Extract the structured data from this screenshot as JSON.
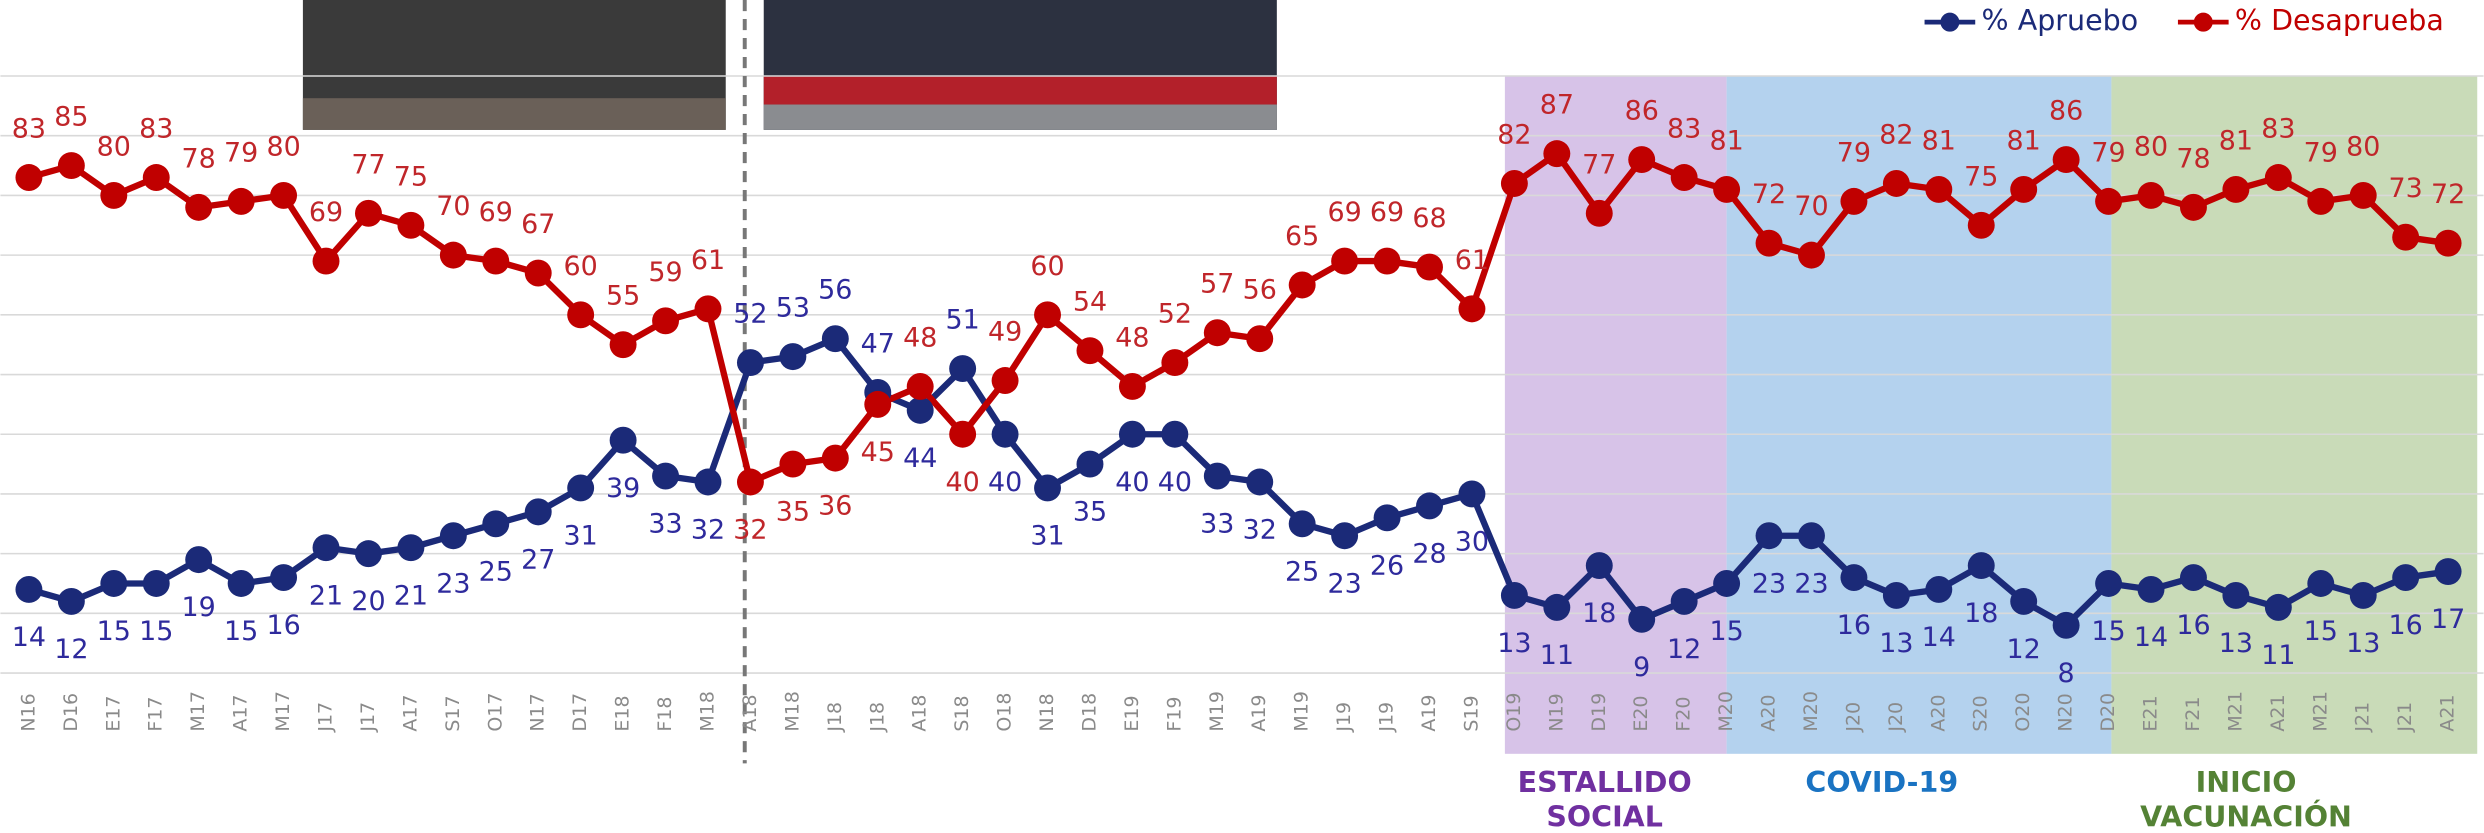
{
  "chart_data": {
    "type": "line",
    "categories": [
      "N16",
      "D16",
      "E17",
      "F17",
      "M17",
      "A17",
      "M17",
      "J17",
      "J17",
      "A17",
      "S17",
      "O17",
      "N17",
      "D17",
      "E18",
      "F18",
      "M18",
      "A18",
      "M18",
      "J18",
      "J18",
      "A18",
      "S18",
      "O18",
      "N18",
      "D18",
      "E19",
      "F19",
      "M19",
      "A19",
      "M19",
      "J19",
      "J19",
      "A19",
      "S19",
      "O19",
      "N19",
      "D19",
      "E20",
      "F20",
      "M20",
      "A20",
      "M20",
      "J20",
      "J20",
      "A20",
      "S20",
      "O20",
      "N20",
      "D20",
      "E21",
      "F21",
      "M21",
      "A21",
      "M21",
      "J21",
      "J21",
      "A21"
    ],
    "series": [
      {
        "name": "% Apruebo",
        "color": "#1b2a78",
        "values": [
          14,
          12,
          15,
          15,
          19,
          15,
          16,
          21,
          20,
          21,
          23,
          25,
          27,
          31,
          39,
          33,
          32,
          52,
          53,
          56,
          47,
          44,
          51,
          40,
          31,
          35,
          40,
          40,
          33,
          32,
          25,
          23,
          26,
          28,
          30,
          13,
          11,
          18,
          9,
          12,
          15,
          23,
          23,
          16,
          13,
          14,
          18,
          12,
          8,
          15,
          14,
          16,
          13,
          11,
          15,
          13,
          16,
          17
        ]
      },
      {
        "name": "% Desaprueba",
        "color": "#c00000",
        "values": [
          83,
          85,
          80,
          83,
          78,
          79,
          80,
          69,
          77,
          75,
          70,
          69,
          67,
          60,
          55,
          59,
          61,
          32,
          35,
          36,
          45,
          48,
          40,
          49,
          60,
          54,
          48,
          52,
          57,
          56,
          65,
          69,
          69,
          68,
          61,
          82,
          87,
          77,
          86,
          83,
          81,
          72,
          70,
          79,
          82,
          81,
          75,
          81,
          86,
          79,
          80,
          78,
          81,
          83,
          79,
          80,
          73,
          72
        ]
      }
    ],
    "ylim": [
      0,
      100
    ],
    "yticks": [
      0,
      10,
      20,
      30,
      40,
      50,
      60,
      70,
      80,
      90,
      100
    ],
    "grid": true,
    "annotations": [
      "ESTALLIDO SOCIAL",
      "COVID-19",
      "INICIO VACUNACIÓN"
    ]
  }
}
